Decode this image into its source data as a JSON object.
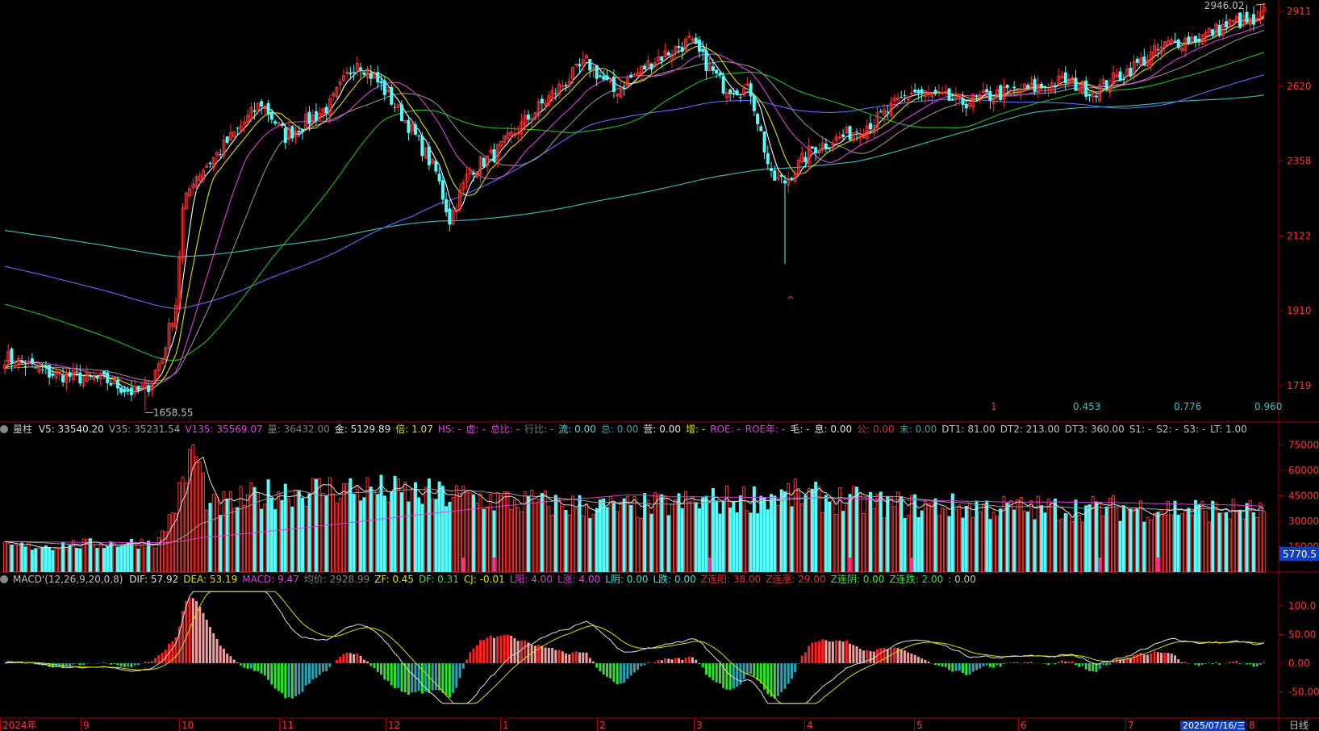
{
  "price_panel": {
    "high_label": "2946.02",
    "low_label": "1658.55",
    "y_axis_ticks": [
      2911,
      2620,
      2358,
      2122,
      1910,
      1719
    ],
    "bottom_values": [
      "1",
      "0.453",
      "0.776",
      "0.960"
    ],
    "marker_up": "^"
  },
  "volume_panel": {
    "label": "量柱",
    "info": [
      {
        "k": "V5:",
        "v": "33540.20",
        "c": "#e0e0e0"
      },
      {
        "k": "V35:",
        "v": "35231.54",
        "c": "#a0a0a0"
      },
      {
        "k": "V135:",
        "v": "35569.07",
        "c": "#e040e0"
      },
      {
        "k": "量:",
        "v": "36432.00",
        "c": "#808080"
      },
      {
        "k": "金:",
        "v": "5129.89",
        "c": "#e0e0e0"
      },
      {
        "k": "倍:",
        "v": "1.07",
        "c": "#e0e000"
      },
      {
        "k": "HS:",
        "v": "-",
        "c": "#e040e0"
      },
      {
        "k": "虚:",
        "v": "-",
        "c": "#e040e0"
      },
      {
        "k": "总比:",
        "v": "-",
        "c": "#e040e0"
      },
      {
        "k": "行比:",
        "v": "-",
        "c": "#808080"
      },
      {
        "k": "流:",
        "v": "0.00",
        "c": "#40e0e0"
      },
      {
        "k": "总:",
        "v": "0.00",
        "c": "#40a0a0"
      },
      {
        "k": "营:",
        "v": "0.00",
        "c": "#e0e0e0"
      },
      {
        "k": "增:",
        "v": "-",
        "c": "#e0e000"
      },
      {
        "k": "ROE:",
        "v": "-",
        "c": "#e040e0"
      },
      {
        "k": "ROE年:",
        "v": "-",
        "c": "#e040e0"
      },
      {
        "k": "毛:",
        "v": "-",
        "c": "#e0e0e0"
      },
      {
        "k": "息:",
        "v": "0.00",
        "c": "#e0e0e0"
      },
      {
        "k": "公:",
        "v": "0.00",
        "c": "#e03030"
      },
      {
        "k": "未:",
        "v": "0.00",
        "c": "#40a0a0"
      },
      {
        "k": "DT1:",
        "v": "81.00",
        "c": "#c0c0c0"
      },
      {
        "k": "DT2:",
        "v": "213.00",
        "c": "#c0c0c0"
      },
      {
        "k": "DT3:",
        "v": "360.00",
        "c": "#c0c0c0"
      },
      {
        "k": "S1:",
        "v": "-",
        "c": "#c0c0c0"
      },
      {
        "k": "S2:",
        "v": "-",
        "c": "#c0c0c0"
      },
      {
        "k": "S3:",
        "v": "-",
        "c": "#c0c0c0"
      },
      {
        "k": "LT:",
        "v": "1.00",
        "c": "#c0c0c0"
      }
    ],
    "y_axis_ticks": [
      75000,
      60000,
      45000,
      30000,
      15000
    ],
    "last_value": "5770.5"
  },
  "macd_panel": {
    "label": "MACD'(12,26,9,20,0,8)",
    "info": [
      {
        "k": "DIF:",
        "v": "57.92",
        "c": "#e0e0e0"
      },
      {
        "k": "DEA:",
        "v": "53.19",
        "c": "#e0e000"
      },
      {
        "k": "MACD:",
        "v": "9.47",
        "c": "#e040e0"
      },
      {
        "k": "均价:",
        "v": "2928.99",
        "c": "#808080"
      },
      {
        "k": "ZF:",
        "v": "0.45",
        "c": "#e0e000"
      },
      {
        "k": "DF:",
        "v": "0.31",
        "c": "#40e040"
      },
      {
        "k": "CJ:",
        "v": "-0.01",
        "c": "#e0e000"
      },
      {
        "k": "L阳:",
        "v": "4.00",
        "c": "#e040e0"
      },
      {
        "k": "L涨:",
        "v": "4.00",
        "c": "#e040e0"
      },
      {
        "k": "L阴:",
        "v": "0.00",
        "c": "#40e0e0"
      },
      {
        "k": "L跌:",
        "v": "0.00",
        "c": "#40e0e0"
      },
      {
        "k": "Z连阳:",
        "v": "38.00",
        "c": "#e03030"
      },
      {
        "k": "Z连涨:",
        "v": "29.00",
        "c": "#e03030"
      },
      {
        "k": "Z连阴:",
        "v": "0.00",
        "c": "#40e040"
      },
      {
        "k": "Z连跌:",
        "v": "2.00",
        "c": "#40e040"
      },
      {
        "k": ":",
        "v": "0.00",
        "c": "#c0c0c0"
      }
    ],
    "y_axis_ticks": [
      "100.0",
      "50.00",
      "0.00",
      "-50.00"
    ]
  },
  "time_axis": {
    "labels": [
      "2024年",
      "9",
      "10",
      "11",
      "12",
      "1",
      "2",
      "3",
      "4",
      "5",
      "6",
      "7",
      "8"
    ],
    "current_date": "2025/07/16/三",
    "period": "日线"
  },
  "colors": {
    "up": "#ff3333",
    "down": "#54fcfc",
    "axis": "#a00000",
    "ma5": "#ffffff",
    "ma10": "#e0e000",
    "ma20": "#e040e0",
    "ma30": "#909090",
    "ma60": "#20c020",
    "ma120": "#6070ff",
    "ma250": "#40c0c0"
  },
  "chart_data": {
    "type": "candlestick",
    "y_range": [
      1658.55,
      2946.02
    ],
    "close_keypoints": [
      [
        0,
        1790
      ],
      [
        12,
        1750
      ],
      [
        30,
        1730
      ],
      [
        38,
        1700
      ],
      [
        42,
        1720
      ],
      [
        46,
        1790
      ],
      [
        50,
        1930
      ],
      [
        52,
        2200
      ],
      [
        55,
        2300
      ],
      [
        62,
        2380
      ],
      [
        75,
        2560
      ],
      [
        82,
        2440
      ],
      [
        95,
        2550
      ],
      [
        103,
        2720
      ],
      [
        110,
        2620
      ],
      [
        118,
        2480
      ],
      [
        126,
        2320
      ],
      [
        130,
        2170
      ],
      [
        136,
        2330
      ],
      [
        143,
        2380
      ],
      [
        155,
        2530
      ],
      [
        170,
        2710
      ],
      [
        178,
        2600
      ],
      [
        190,
        2720
      ],
      [
        200,
        2790
      ],
      [
        210,
        2620
      ],
      [
        218,
        2600
      ],
      [
        224,
        2300
      ],
      [
        228,
        2290
      ],
      [
        236,
        2400
      ],
      [
        245,
        2440
      ],
      [
        255,
        2500
      ],
      [
        265,
        2600
      ],
      [
        280,
        2560
      ],
      [
        290,
        2590
      ],
      [
        300,
        2610
      ],
      [
        310,
        2640
      ],
      [
        318,
        2600
      ],
      [
        325,
        2650
      ],
      [
        340,
        2780
      ],
      [
        350,
        2810
      ],
      [
        360,
        2870
      ],
      [
        366,
        2860
      ],
      [
        368,
        2920
      ]
    ],
    "ma_start": {
      "ma20": 1780,
      "ma30": 1760,
      "ma60": 1930,
      "ma120": 2035,
      "ma250": 2140
    },
    "volume_keypoints": [
      [
        0,
        15000
      ],
      [
        45,
        18000
      ],
      [
        52,
        50000
      ],
      [
        55,
        75000
      ],
      [
        60,
        38000
      ],
      [
        80,
        48000
      ],
      [
        100,
        50000
      ],
      [
        120,
        47000
      ],
      [
        150,
        42000
      ],
      [
        180,
        38000
      ],
      [
        230,
        46000
      ],
      [
        260,
        40000
      ],
      [
        300,
        38000
      ],
      [
        340,
        38000
      ],
      [
        368,
        36000
      ]
    ],
    "macd": {
      "dif_end": 57.92,
      "dea_end": 53.19,
      "hist_end": 9.47,
      "y_range": [
        -70,
        125
      ]
    }
  }
}
